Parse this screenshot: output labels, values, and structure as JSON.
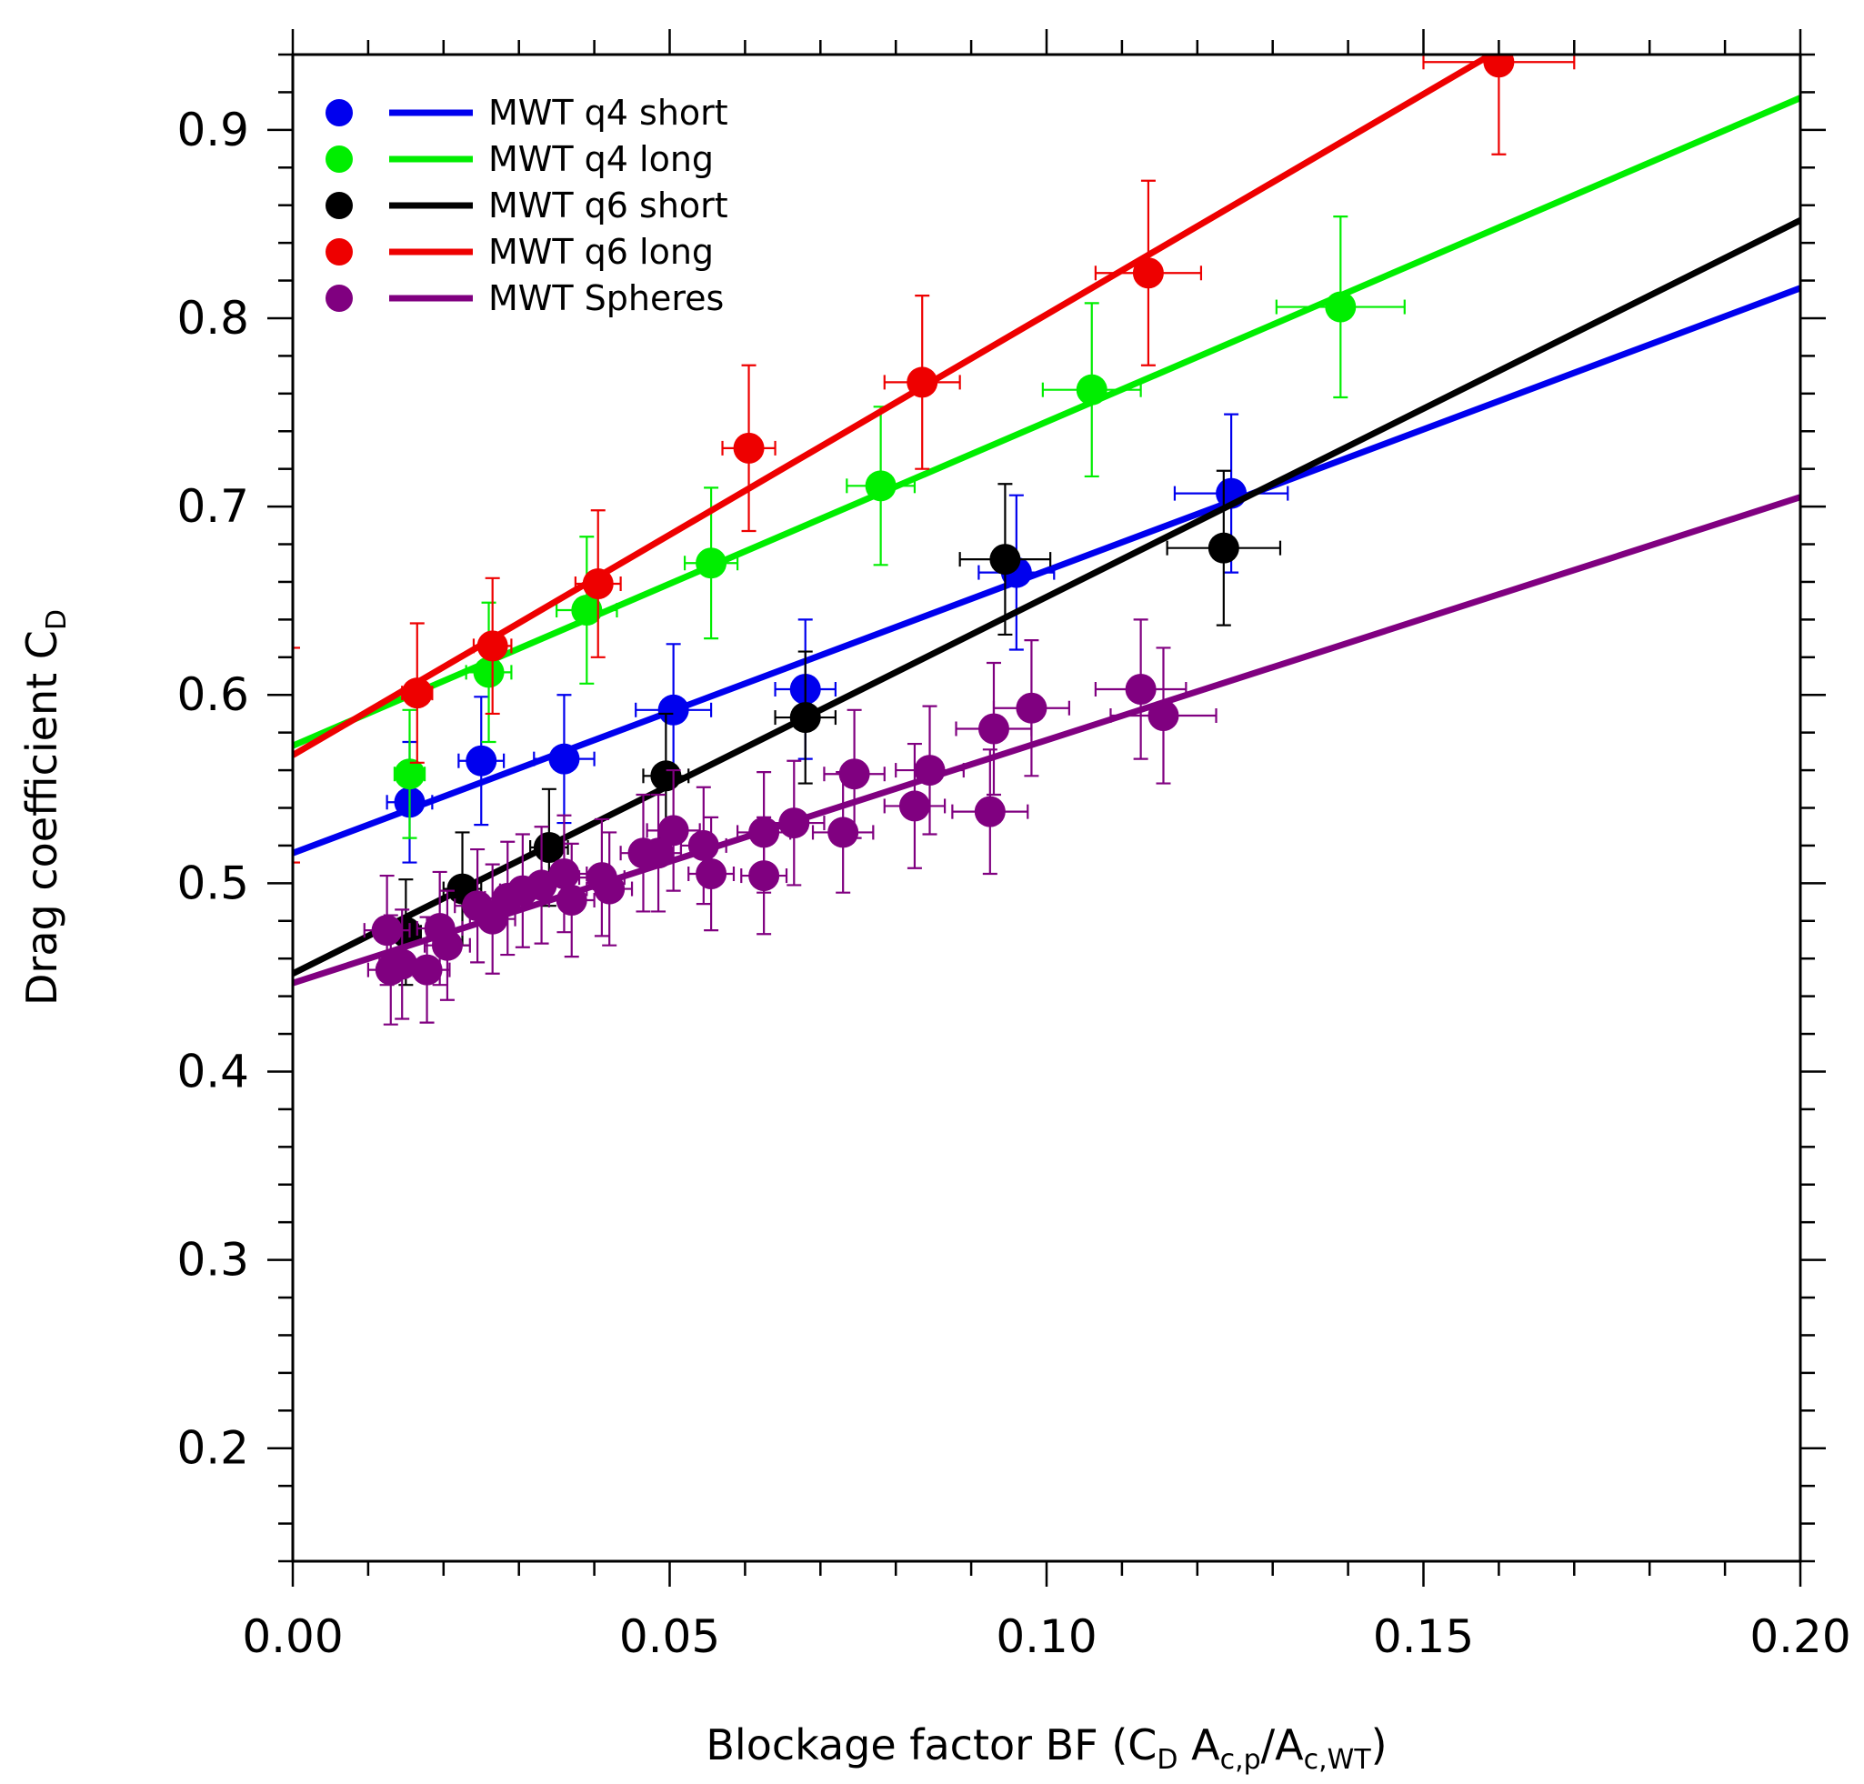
{
  "chart_data": {
    "type": "scatter",
    "xlabel": {
      "main": "Blockage factor BF (C",
      "sub1": "D",
      "mid": " A",
      "sub2": "c,p",
      "slash": "/A",
      "sub3": "c,WT",
      "close": ")"
    },
    "ylabel": {
      "main": "Drag coefficient C",
      "sub": "D"
    },
    "xlim": [
      0.0,
      0.2
    ],
    "ylim": [
      0.14,
      0.94
    ],
    "x_ticks": [
      {
        "v": 0.0,
        "label": "0.00"
      },
      {
        "v": 0.05,
        "label": "0.05"
      },
      {
        "v": 0.1,
        "label": "0.10"
      },
      {
        "v": 0.15,
        "label": "0.15"
      },
      {
        "v": 0.2,
        "label": "0.20"
      }
    ],
    "y_ticks": [
      {
        "v": 0.2,
        "label": "0.2"
      },
      {
        "v": 0.3,
        "label": "0.3"
      },
      {
        "v": 0.4,
        "label": "0.4"
      },
      {
        "v": 0.5,
        "label": "0.5"
      },
      {
        "v": 0.6,
        "label": "0.6"
      },
      {
        "v": 0.7,
        "label": "0.7"
      },
      {
        "v": 0.8,
        "label": "0.8"
      },
      {
        "v": 0.9,
        "label": "0.9"
      }
    ],
    "legend_position": "top-left",
    "series": [
      {
        "name": "MWT q4 short",
        "color": "#0000ee",
        "fit": {
          "intercept": 0.516,
          "slope": 1.5
        },
        "points": [
          {
            "x": 0.0155,
            "y": 0.543,
            "xerr": 0.003,
            "yerr": 0.032
          },
          {
            "x": 0.025,
            "y": 0.565,
            "xerr": 0.003,
            "yerr": 0.034
          },
          {
            "x": 0.036,
            "y": 0.566,
            "xerr": 0.004,
            "yerr": 0.034
          },
          {
            "x": 0.0505,
            "y": 0.592,
            "xerr": 0.005,
            "yerr": 0.035
          },
          {
            "x": 0.068,
            "y": 0.603,
            "xerr": 0.004,
            "yerr": 0.037
          },
          {
            "x": 0.096,
            "y": 0.665,
            "xerr": 0.005,
            "yerr": 0.041
          },
          {
            "x": 0.1245,
            "y": 0.707,
            "xerr": 0.0075,
            "yerr": 0.042
          }
        ]
      },
      {
        "name": "MWT q4 long",
        "color": "#00ee00",
        "fit": {
          "intercept": 0.573,
          "slope": 1.72
        },
        "points": [
          {
            "x": 0.0155,
            "y": 0.558,
            "xerr": 0.002,
            "yerr": 0.034
          },
          {
            "x": 0.026,
            "y": 0.612,
            "xerr": 0.003,
            "yerr": 0.037
          },
          {
            "x": 0.039,
            "y": 0.645,
            "xerr": 0.004,
            "yerr": 0.039
          },
          {
            "x": 0.0555,
            "y": 0.67,
            "xerr": 0.0035,
            "yerr": 0.04
          },
          {
            "x": 0.078,
            "y": 0.711,
            "xerr": 0.0045,
            "yerr": 0.042
          },
          {
            "x": 0.106,
            "y": 0.762,
            "xerr": 0.0065,
            "yerr": 0.046
          },
          {
            "x": 0.139,
            "y": 0.806,
            "xerr": 0.0085,
            "yerr": 0.048
          }
        ]
      },
      {
        "name": "MWT q6 short",
        "color": "#000000",
        "fit": {
          "intercept": 0.452,
          "slope": 2.0
        },
        "points": [
          {
            "x": 0.015,
            "y": 0.474,
            "xerr": 0.002,
            "yerr": 0.028
          },
          {
            "x": 0.0225,
            "y": 0.497,
            "xerr": 0.0025,
            "yerr": 0.03
          },
          {
            "x": 0.034,
            "y": 0.519,
            "xerr": 0.0025,
            "yerr": 0.031
          },
          {
            "x": 0.0495,
            "y": 0.557,
            "xerr": 0.003,
            "yerr": 0.033
          },
          {
            "x": 0.068,
            "y": 0.588,
            "xerr": 0.004,
            "yerr": 0.035
          },
          {
            "x": 0.0945,
            "y": 0.672,
            "xerr": 0.006,
            "yerr": 0.04
          },
          {
            "x": 0.1235,
            "y": 0.678,
            "xerr": 0.0075,
            "yerr": 0.041
          }
        ]
      },
      {
        "name": "MWT q6 long",
        "color": "#ee0000",
        "fit": {
          "intercept": 0.568,
          "slope": 2.34
        },
        "points": [
          {
            "x": 0.0165,
            "y": 0.601,
            "xerr": 0.002,
            "yerr": 0.037
          },
          {
            "x": 0.0265,
            "y": 0.626,
            "xerr": 0.0025,
            "yerr": 0.036
          },
          {
            "x": 0.0405,
            "y": 0.659,
            "xerr": 0.003,
            "yerr": 0.039
          },
          {
            "x": 0.0605,
            "y": 0.731,
            "xerr": 0.0035,
            "yerr": 0.044
          },
          {
            "x": 0.0835,
            "y": 0.766,
            "xerr": 0.005,
            "yerr": 0.046
          },
          {
            "x": 0.1135,
            "y": 0.824,
            "xerr": 0.007,
            "yerr": 0.049
          },
          {
            "x": 0.16,
            "y": 0.936,
            "xerr": 0.01,
            "yerr": 0.049
          },
          {
            "x": 0.0,
            "y": 0.568,
            "xerr": 0.0,
            "yerr": 0.057
          }
        ]
      },
      {
        "name": "MWT Spheres",
        "color": "#800080",
        "fit": {
          "intercept": 0.447,
          "slope": 1.29
        },
        "points": [
          {
            "x": 0.0125,
            "y": 0.475,
            "xerr": 0.003,
            "yerr": 0.029
          },
          {
            "x": 0.013,
            "y": 0.454,
            "xerr": 0.003,
            "yerr": 0.029
          },
          {
            "x": 0.0145,
            "y": 0.457,
            "xerr": 0.003,
            "yerr": 0.029
          },
          {
            "x": 0.0178,
            "y": 0.454,
            "xerr": 0.003,
            "yerr": 0.028
          },
          {
            "x": 0.0195,
            "y": 0.476,
            "xerr": 0.003,
            "yerr": 0.03
          },
          {
            "x": 0.0205,
            "y": 0.467,
            "xerr": 0.003,
            "yerr": 0.029
          },
          {
            "x": 0.0245,
            "y": 0.488,
            "xerr": 0.003,
            "yerr": 0.03
          },
          {
            "x": 0.0265,
            "y": 0.481,
            "xerr": 0.003,
            "yerr": 0.029
          },
          {
            "x": 0.0285,
            "y": 0.492,
            "xerr": 0.003,
            "yerr": 0.03
          },
          {
            "x": 0.0305,
            "y": 0.496,
            "xerr": 0.003,
            "yerr": 0.03
          },
          {
            "x": 0.033,
            "y": 0.499,
            "xerr": 0.003,
            "yerr": 0.031
          },
          {
            "x": 0.036,
            "y": 0.505,
            "xerr": 0.003,
            "yerr": 0.031
          },
          {
            "x": 0.037,
            "y": 0.491,
            "xerr": 0.003,
            "yerr": 0.03
          },
          {
            "x": 0.041,
            "y": 0.503,
            "xerr": 0.003,
            "yerr": 0.031
          },
          {
            "x": 0.042,
            "y": 0.497,
            "xerr": 0.003,
            "yerr": 0.03
          },
          {
            "x": 0.0465,
            "y": 0.516,
            "xerr": 0.003,
            "yerr": 0.031
          },
          {
            "x": 0.0485,
            "y": 0.516,
            "xerr": 0.003,
            "yerr": 0.031
          },
          {
            "x": 0.0505,
            "y": 0.528,
            "xerr": 0.0035,
            "yerr": 0.032
          },
          {
            "x": 0.0545,
            "y": 0.52,
            "xerr": 0.003,
            "yerr": 0.031
          },
          {
            "x": 0.0555,
            "y": 0.505,
            "xerr": 0.003,
            "yerr": 0.03
          },
          {
            "x": 0.0625,
            "y": 0.527,
            "xerr": 0.0035,
            "yerr": 0.032
          },
          {
            "x": 0.0625,
            "y": 0.504,
            "xerr": 0.003,
            "yerr": 0.031
          },
          {
            "x": 0.0665,
            "y": 0.532,
            "xerr": 0.004,
            "yerr": 0.033
          },
          {
            "x": 0.073,
            "y": 0.527,
            "xerr": 0.004,
            "yerr": 0.032
          },
          {
            "x": 0.0745,
            "y": 0.558,
            "xerr": 0.004,
            "yerr": 0.034
          },
          {
            "x": 0.0825,
            "y": 0.541,
            "xerr": 0.004,
            "yerr": 0.033
          },
          {
            "x": 0.0845,
            "y": 0.56,
            "xerr": 0.0045,
            "yerr": 0.034
          },
          {
            "x": 0.0925,
            "y": 0.538,
            "xerr": 0.005,
            "yerr": 0.033
          },
          {
            "x": 0.093,
            "y": 0.582,
            "xerr": 0.005,
            "yerr": 0.035
          },
          {
            "x": 0.098,
            "y": 0.593,
            "xerr": 0.005,
            "yerr": 0.036
          },
          {
            "x": 0.1125,
            "y": 0.603,
            "xerr": 0.006,
            "yerr": 0.037
          },
          {
            "x": 0.1155,
            "y": 0.589,
            "xerr": 0.007,
            "yerr": 0.036
          }
        ]
      }
    ]
  }
}
